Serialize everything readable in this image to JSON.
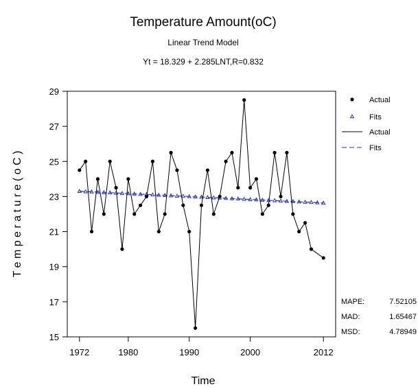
{
  "chart_data": {
    "type": "line",
    "title": "Temperature Amount(oC)",
    "subtitle": "Linear Trend Model",
    "equation": "Yt = 18.329 + 2.285LNT,R=0.832",
    "xlabel": "Time",
    "ylabel": "T e m p e r a t u r e ( o C )",
    "xlim": [
      1970,
      2014
    ],
    "ylim": [
      15,
      29
    ],
    "xticks": [
      1972,
      1980,
      1990,
      2000,
      2012
    ],
    "yticks": [
      15,
      17,
      19,
      21,
      23,
      25,
      27,
      29
    ],
    "grid": false,
    "legend_position": "right",
    "series": [
      {
        "name": "Actual",
        "color": "#000000",
        "marker": "circle",
        "line": "solid",
        "x": [
          1972,
          1973,
          1974,
          1975,
          1976,
          1977,
          1978,
          1979,
          1980,
          1981,
          1982,
          1983,
          1984,
          1985,
          1986,
          1987,
          1988,
          1989,
          1990,
          1991,
          1992,
          1993,
          1994,
          1995,
          1996,
          1997,
          1998,
          1999,
          2000,
          2001,
          2002,
          2003,
          2004,
          2005,
          2006,
          2007,
          2008,
          2009,
          2010
        ],
        "values": [
          24.5,
          25.0,
          21.0,
          24.0,
          22.0,
          25.0,
          23.5,
          20.0,
          24.0,
          22.0,
          22.5,
          23.0,
          25.0,
          21.0,
          22.0,
          25.5,
          24.5,
          22.5,
          21.0,
          15.5,
          22.5,
          24.5,
          22.0,
          23.0,
          25.0,
          25.5,
          23.5,
          28.5,
          23.5,
          24.0,
          22.0,
          22.5,
          25.5,
          23.0,
          25.5,
          22.0,
          21.0,
          21.5,
          20.0
        ]
      },
      {
        "name": "Fits",
        "color": "#1f2fd8",
        "marker": "triangle",
        "line": "dashed",
        "x": [
          1972,
          1973,
          1974,
          1975,
          1976,
          1977,
          1978,
          1979,
          1980,
          1981,
          1982,
          1983,
          1984,
          1985,
          1986,
          1987,
          1988,
          1989,
          1990,
          1991,
          1992,
          1993,
          1994,
          1995,
          1996,
          1997,
          1998,
          1999,
          2000,
          2001,
          2002,
          2003,
          2004,
          2005,
          2006,
          2007,
          2008,
          2009,
          2010,
          2011,
          2012
        ],
        "values": [
          23.3,
          23.28,
          23.27,
          23.25,
          23.23,
          23.22,
          23.2,
          23.18,
          23.17,
          23.15,
          23.13,
          23.12,
          23.1,
          23.08,
          23.07,
          23.05,
          23.03,
          23.02,
          23.0,
          22.98,
          22.97,
          22.95,
          22.93,
          22.92,
          22.9,
          22.88,
          22.87,
          22.85,
          22.83,
          22.82,
          22.8,
          22.78,
          22.77,
          22.75,
          22.73,
          22.72,
          22.7,
          22.68,
          22.67,
          22.65,
          22.63
        ]
      }
    ],
    "extra_actual": {
      "x": [
        2011,
        2012
      ],
      "values": [
        19.5,
        19.5
      ]
    },
    "accuracy": [
      {
        "label": "MAPE:",
        "value": "7.52105"
      },
      {
        "label": "MAD:",
        "value": "1.65467"
      },
      {
        "label": "MSD:",
        "value": "4.78949"
      }
    ],
    "legend": [
      {
        "label": "Actual",
        "kind": "point"
      },
      {
        "label": "Fits",
        "kind": "triangle"
      },
      {
        "label": "Actual",
        "kind": "solid"
      },
      {
        "label": "Fits",
        "kind": "dashed"
      }
    ]
  }
}
